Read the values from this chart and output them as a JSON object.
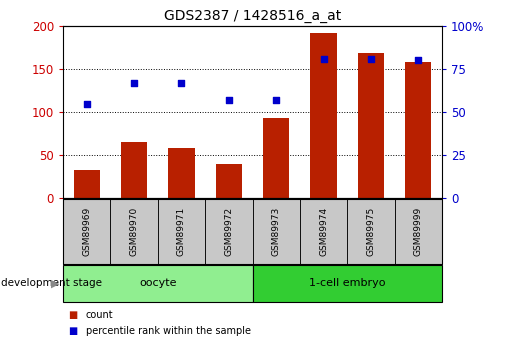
{
  "title": "GDS2387 / 1428516_a_at",
  "samples": [
    "GSM89969",
    "GSM89970",
    "GSM89971",
    "GSM89972",
    "GSM89973",
    "GSM89974",
    "GSM89975",
    "GSM89999"
  ],
  "counts": [
    33,
    65,
    58,
    40,
    93,
    192,
    168,
    158
  ],
  "percentile_ranks": [
    55,
    67,
    67,
    57,
    57,
    81,
    81,
    80
  ],
  "bar_color": "#B82000",
  "dot_color": "#0000CC",
  "left_ylim": [
    0,
    200
  ],
  "left_yticks": [
    0,
    50,
    100,
    150,
    200
  ],
  "left_ylabel_color": "#CC0000",
  "right_ylim": [
    0,
    100
  ],
  "right_yticks": [
    0,
    25,
    50,
    75,
    100
  ],
  "right_ylabel_color": "#0000CC",
  "groups": [
    {
      "label": "oocyte",
      "indices": [
        0,
        1,
        2,
        3
      ],
      "color": "#90EE90"
    },
    {
      "label": "1-cell embryo",
      "indices": [
        4,
        5,
        6,
        7
      ],
      "color": "#32CD32"
    }
  ],
  "group_label": "development stage",
  "legend_items": [
    {
      "label": "count",
      "color": "#B82000"
    },
    {
      "label": "percentile rank within the sample",
      "color": "#0000CC"
    }
  ],
  "bar_width": 0.55,
  "grid_color": "black",
  "tick_label_box_color": "#C8C8C8"
}
